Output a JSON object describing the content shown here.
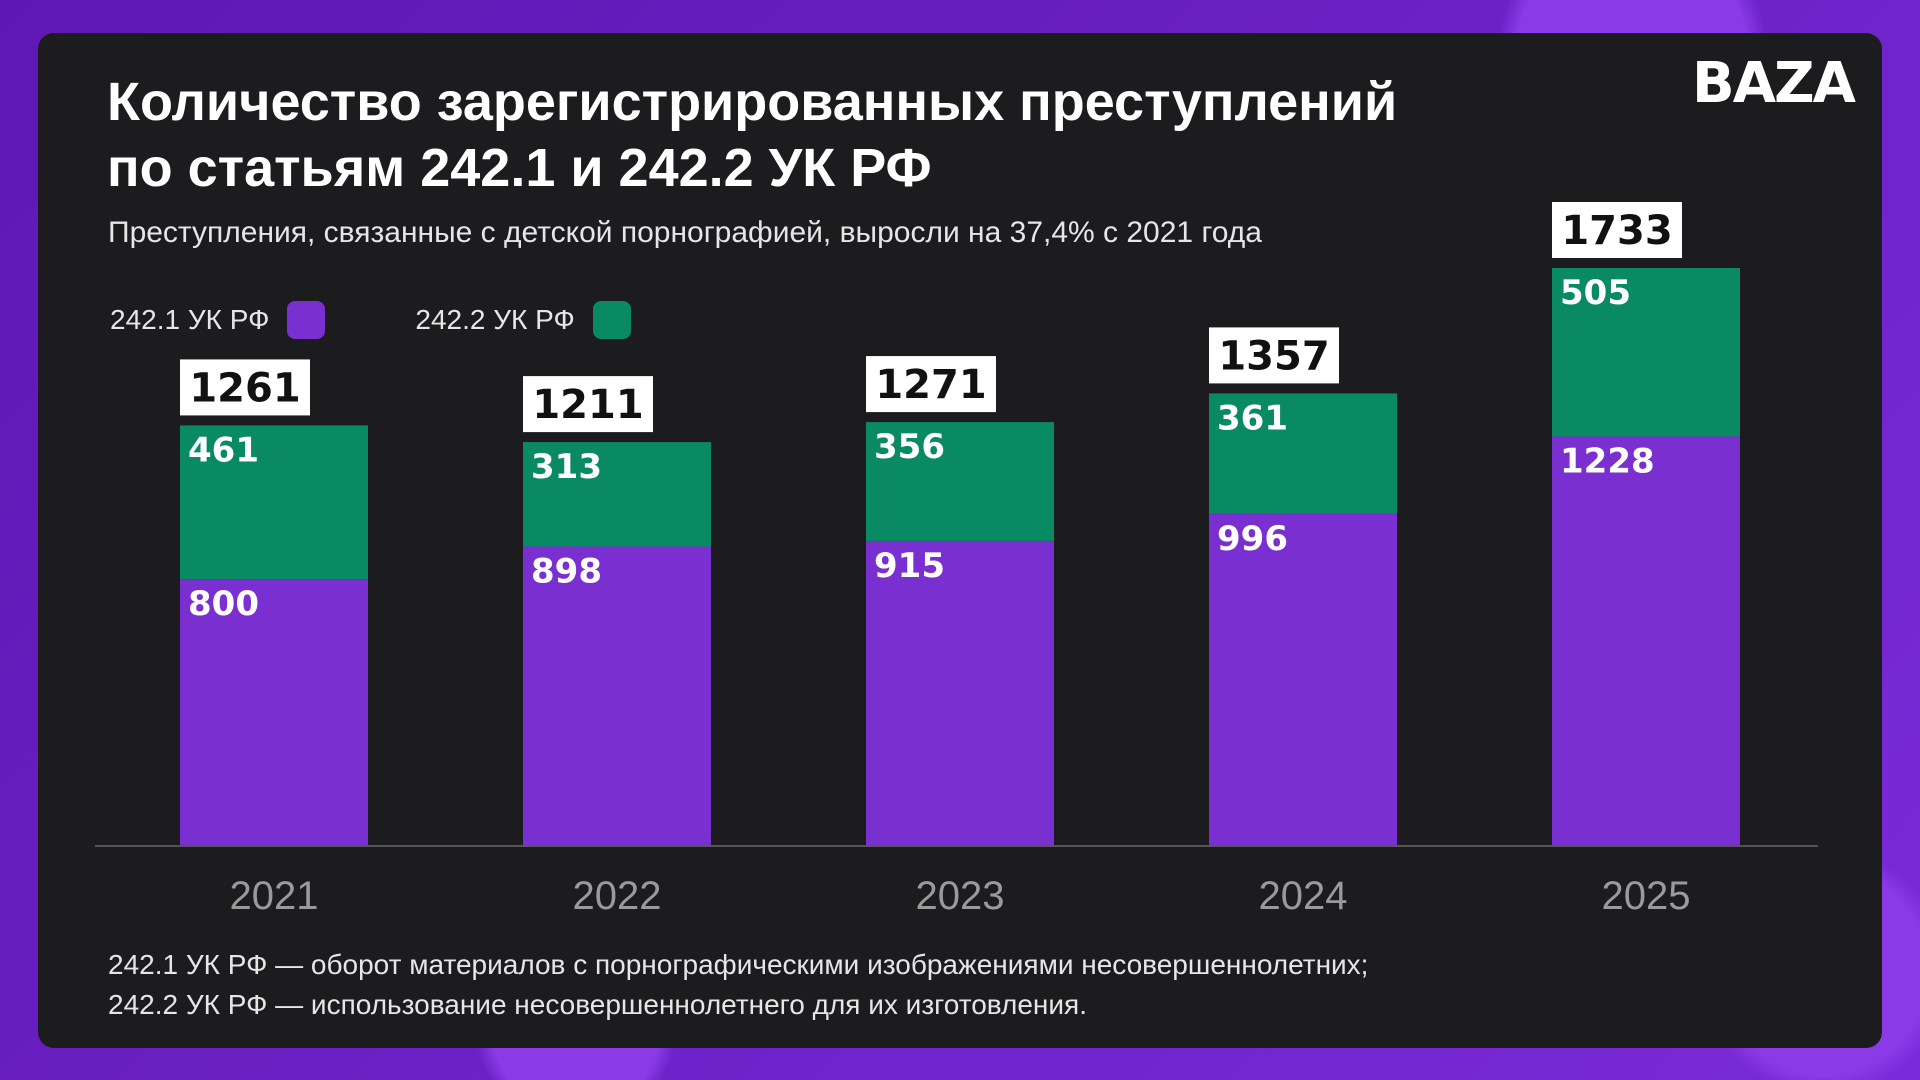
{
  "title_lines": [
    "Количество зарегистрированных преступлений",
    "по статьям 242.1 и 242.2 УК РФ"
  ],
  "subtitle": "Преступления, связанные с детской порнографией, выросли на 37,4% с 2021 года",
  "logo": "BAZA",
  "legend": [
    {
      "label": "242.1 УК РФ",
      "color": "#7a2fd0"
    },
    {
      "label": "242.2 УК РФ",
      "color": "#0a8a63"
    }
  ],
  "footnotes": [
    "242.1 УК РФ — оборот материалов с порнографическими изображениями несовершеннолетних;",
    "242.2 УК РФ — использование несовершеннолетнего для их изготовления."
  ],
  "colors": {
    "purple": "#7a2fd0",
    "green": "#0a8a63",
    "card": "#1c1c1e"
  },
  "chart_data": {
    "type": "bar",
    "stacked": true,
    "categories": [
      "2021",
      "2022",
      "2023",
      "2024",
      "2025"
    ],
    "series": [
      {
        "name": "242.1 УК РФ",
        "values": [
          800,
          898,
          915,
          996,
          1228
        ]
      },
      {
        "name": "242.2 УК РФ",
        "values": [
          461,
          313,
          356,
          361,
          505
        ]
      }
    ],
    "totals": [
      "1261",
      "1211",
      "1271",
      "1357",
      "1733"
    ],
    "ylim": [
      0,
      1733
    ],
    "grid": false
  }
}
